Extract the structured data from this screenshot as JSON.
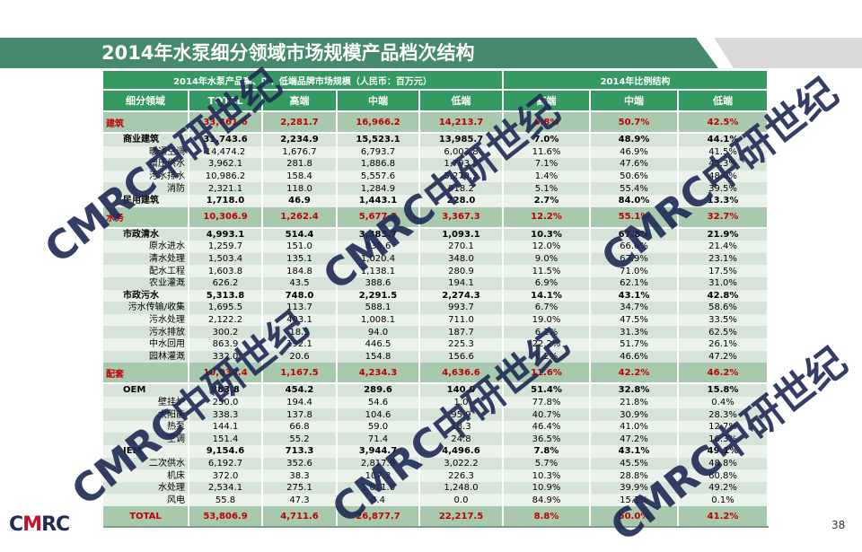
{
  "title": "2014年水泵细分领域市场规模产品档次结构",
  "table": {
    "group_header_left": "2014年水泵产品高、中、低端品牌市场规模（人民币：百万元）",
    "group_header_right": "2014年比例结构",
    "columns": [
      "细分领域",
      "TOTAL",
      "高端",
      "中端",
      "低端",
      "高端",
      "中端",
      "低端"
    ],
    "rows": [
      {
        "type": "sec",
        "cells": [
          "建筑",
          "33,461.6",
          "2,281.7",
          "16,966.2",
          "14,213.7",
          "6.8%",
          "50.7%",
          "42.5%"
        ]
      },
      {
        "type": "l1",
        "cells": [
          "商业建筑",
          "31,743.6",
          "2,234.9",
          "15,523.1",
          "13,985.7",
          "7.0%",
          "48.9%",
          "44.1%"
        ]
      },
      {
        "type": "l2",
        "cells": [
          "暖通空调",
          "14,474.2",
          "1,676.7",
          "6,793.7",
          "6,003.8",
          "11.6%",
          "46.9%",
          "41.5%"
        ]
      },
      {
        "type": "l2",
        "cells": [
          "增压供水",
          "3,962.1",
          "281.8",
          "1,886.8",
          "1,793.5",
          "7.1%",
          "47.6%",
          "45.3%"
        ]
      },
      {
        "type": "l2",
        "cells": [
          "污水排水",
          "10,986.2",
          "158.4",
          "5,557.6",
          "5,270.2",
          "1.4%",
          "50.6%",
          "48.0%"
        ]
      },
      {
        "type": "l2",
        "cells": [
          "消防",
          "2,321.1",
          "118.0",
          "1,284.9",
          "918.2",
          "5.1%",
          "55.4%",
          "39.5%"
        ]
      },
      {
        "type": "l1",
        "cells": [
          "民用建筑",
          "1,718.0",
          "46.9",
          "1,443.1",
          "228.0",
          "2.7%",
          "84.0%",
          "13.3%"
        ]
      },
      {
        "type": "sec",
        "cells": [
          "水务",
          "10,306.9",
          "1,262.4",
          "5,677.2",
          "3,367.3",
          "12.2%",
          "55.1%",
          "32.7%"
        ]
      },
      {
        "type": "l1",
        "cells": [
          "市政清水",
          "4,993.1",
          "514.4",
          "3,385.7",
          "1,093.1",
          "10.3%",
          "67.8%",
          "21.9%"
        ]
      },
      {
        "type": "l2",
        "cells": [
          "原水进水",
          "1,259.7",
          "151.0",
          "838.6",
          "270.1",
          "12.0%",
          "66.6%",
          "21.4%"
        ]
      },
      {
        "type": "l2",
        "cells": [
          "清水处理",
          "1,503.4",
          "135.1",
          "1,020.4",
          "348.0",
          "9.0%",
          "67.9%",
          "23.1%"
        ]
      },
      {
        "type": "l2",
        "cells": [
          "配水工程",
          "1,603.8",
          "184.8",
          "1,138.1",
          "280.9",
          "11.5%",
          "71.0%",
          "17.5%"
        ]
      },
      {
        "type": "l2",
        "cells": [
          "农业灌溉",
          "626.2",
          "43.5",
          "388.6",
          "194.1",
          "6.9%",
          "62.1%",
          "31.0%"
        ]
      },
      {
        "type": "l1",
        "cells": [
          "市政污水",
          "5,313.8",
          "748.0",
          "2,291.5",
          "2,274.3",
          "14.1%",
          "43.1%",
          "42.8%"
        ]
      },
      {
        "type": "l2",
        "cells": [
          "污水传输/收集",
          "1,695.5",
          "113.7",
          "588.1",
          "993.7",
          "6.7%",
          "34.7%",
          "58.6%"
        ]
      },
      {
        "type": "l2",
        "cells": [
          "污水处理",
          "2,122.2",
          "403.1",
          "1,008.1",
          "711.0",
          "19.0%",
          "47.5%",
          "33.5%"
        ]
      },
      {
        "type": "l2",
        "cells": [
          "污水排放",
          "300.2",
          "18.5",
          "94.0",
          "187.7",
          "6.2%",
          "31.3%",
          "62.5%"
        ]
      },
      {
        "type": "l2",
        "cells": [
          "中水回用",
          "863.9",
          "192.1",
          "446.5",
          "225.3",
          "22.2%",
          "51.7%",
          "26.1%"
        ]
      },
      {
        "type": "l2",
        "cells": [
          "园林灌溉",
          "332.0",
          "20.6",
          "154.8",
          "156.6",
          "6.2%",
          "46.6%",
          "47.2%"
        ]
      },
      {
        "type": "sec",
        "cells": [
          "配套",
          "10,038.4",
          "1,167.5",
          "4,234.3",
          "4,636.6",
          "11.6%",
          "42.2%",
          "46.2%"
        ]
      },
      {
        "type": "l1",
        "cells": [
          "OEM",
          "883.8",
          "454.2",
          "289.6",
          "140.0",
          "51.4%",
          "32.8%",
          "15.8%"
        ]
      },
      {
        "type": "l2",
        "cells": [
          "壁挂炉",
          "250.0",
          "194.4",
          "54.6",
          "1.0",
          "77.8%",
          "21.8%",
          "0.4%"
        ]
      },
      {
        "type": "l2",
        "cells": [
          "太阳能",
          "338.3",
          "137.8",
          "104.6",
          "95.9",
          "40.7%",
          "30.9%",
          "28.3%"
        ]
      },
      {
        "type": "l2",
        "cells": [
          "热泵",
          "144.1",
          "66.8",
          "59.0",
          "18.3",
          "46.4%",
          "41.0%",
          "12.7%"
        ]
      },
      {
        "type": "l2",
        "cells": [
          "空调",
          "151.4",
          "55.2",
          "71.4",
          "24.8",
          "36.5%",
          "47.2%",
          "16.3%"
        ]
      },
      {
        "type": "l1",
        "cells": [
          "IEM",
          "9,154.6",
          "713.3",
          "3,944.7",
          "4,496.6",
          "7.8%",
          "43.1%",
          "49.1%"
        ]
      },
      {
        "type": "l2",
        "cells": [
          "二次供水",
          "6,192.7",
          "352.6",
          "2,817.9",
          "3,022.2",
          "5.7%",
          "45.5%",
          "48.8%"
        ]
      },
      {
        "type": "l2",
        "cells": [
          "机床",
          "372.0",
          "38.3",
          "107.3",
          "226.3",
          "10.3%",
          "28.8%",
          "60.8%"
        ]
      },
      {
        "type": "l2",
        "cells": [
          "水处理",
          "2,534.1",
          "275.1",
          "1,011.0",
          "1,248.0",
          "10.9%",
          "39.9%",
          "49.2%"
        ]
      },
      {
        "type": "l2",
        "cells": [
          "风电",
          "55.8",
          "47.3",
          "8.4",
          "0.0",
          "84.9%",
          "15.1%",
          "0.1%"
        ]
      },
      {
        "type": "tot",
        "cells": [
          "TOTAL",
          "53,806.9",
          "4,711.6",
          "26,877.7",
          "22,217.5",
          "8.8%",
          "50.0%",
          "41.2%"
        ]
      }
    ]
  },
  "logo": {
    "text_a": "C",
    "text_b": "M",
    "text_c": "RC"
  },
  "watermark": "CMRC中研世纪",
  "page_number": "38",
  "colors": {
    "title_bar": "#458a6c",
    "header": "#359a62",
    "section_row": "#a9c9ae",
    "highlight_text": "#c00000"
  }
}
